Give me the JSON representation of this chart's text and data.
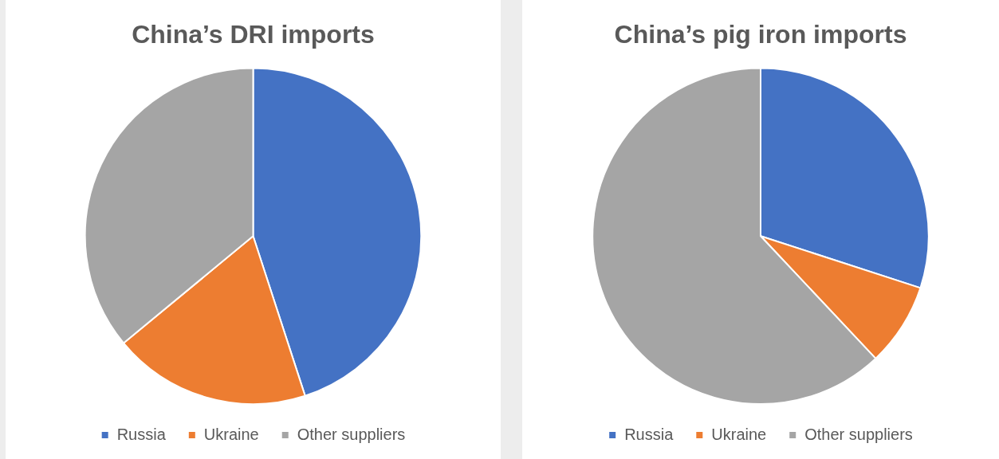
{
  "chart_data": [
    {
      "type": "pie",
      "title": "China’s DRI imports",
      "categories": [
        "Russia",
        "Ukraine",
        "Other suppliers"
      ],
      "values": [
        45,
        19,
        36
      ],
      "colors": [
        "#4472c4",
        "#ed7d31",
        "#a5a5a5"
      ],
      "legend": "bottom"
    },
    {
      "type": "pie",
      "title": "China’s pig iron imports",
      "categories": [
        "Russia",
        "Ukraine",
        "Other suppliers"
      ],
      "values": [
        30,
        8,
        62
      ],
      "colors": [
        "#4472c4",
        "#ed7d31",
        "#a5a5a5"
      ],
      "legend": "bottom"
    }
  ]
}
